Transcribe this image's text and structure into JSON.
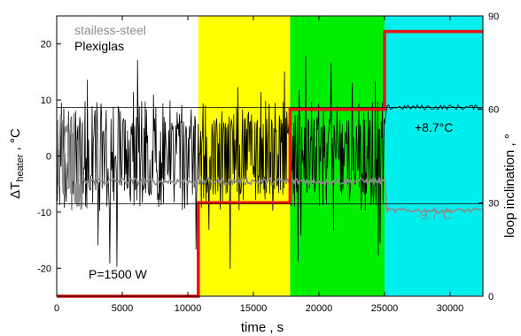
{
  "chart_data": {
    "type": "line",
    "xlabel": "time , s",
    "ylabel_left": {
      "main": "ΔT",
      "sub": "heater",
      "rest": " , °C"
    },
    "ylabel_right": "loop inclination , °",
    "xlim": [
      0,
      32500
    ],
    "ylim_left": [
      -25,
      25
    ],
    "ylim_right": [
      0,
      90
    ],
    "x_ticks": [
      0,
      5000,
      10000,
      15000,
      20000,
      25000,
      30000
    ],
    "x_tick_labels": [
      "0",
      "5000",
      "10000",
      "15000",
      "20000",
      "25000",
      "30000"
    ],
    "y_left_ticks": [
      -20,
      -10,
      0,
      10,
      20
    ],
    "y_left_tick_labels": [
      "-20",
      "-10",
      "0",
      "10",
      "20"
    ],
    "y_right_ticks": [
      0,
      30,
      60,
      90
    ],
    "y_right_tick_labels": [
      "0",
      "30",
      "60",
      "90"
    ],
    "bands": [
      {
        "x_start": 10800,
        "x_end": 17800,
        "color": "#ffff00"
      },
      {
        "x_start": 17800,
        "x_end": 25000,
        "color": "#00ee00"
      },
      {
        "x_start": 25000,
        "x_end": 32500,
        "color": "#00eeee"
      }
    ],
    "reference_lines": [
      8.7,
      -8.5
    ],
    "legend": [
      {
        "label": "stailess-steel",
        "color": "#8c8c8c"
      },
      {
        "label": "Plexiglas",
        "color": "#000000"
      }
    ],
    "annotations": {
      "power": "P=1500 W",
      "plexiglas_final": "+8.7°C",
      "steel_final": "-9.7°C"
    },
    "inclination_series": {
      "color": "#ee1111",
      "x": [
        0,
        10800,
        10800,
        17800,
        17800,
        25000,
        25000,
        32500
      ],
      "y": [
        0,
        0,
        30,
        30,
        60,
        60,
        85,
        85
      ]
    },
    "plexiglas_series": {
      "color": "#000000",
      "segments": [
        {
          "x_start": 0,
          "x_end": 25000,
          "baseline": 0,
          "oscillation_top": 10,
          "oscillation_bottom": -10,
          "spike_max": 18,
          "spike_min": -21
        },
        {
          "x_start": 25000,
          "x_end": 32500,
          "baseline": 8.7
        }
      ]
    },
    "steel_series": {
      "color": "#8c8c8c",
      "segments": [
        {
          "x_start": 0,
          "x_end": 2000,
          "start_value": 0,
          "oscillation_top": 8,
          "oscillation_bottom": -10
        },
        {
          "x_start": 2000,
          "x_end": 25000,
          "baseline": -4.5
        },
        {
          "x_start": 25000,
          "x_end": 32500,
          "baseline": -9.7
        }
      ]
    }
  }
}
